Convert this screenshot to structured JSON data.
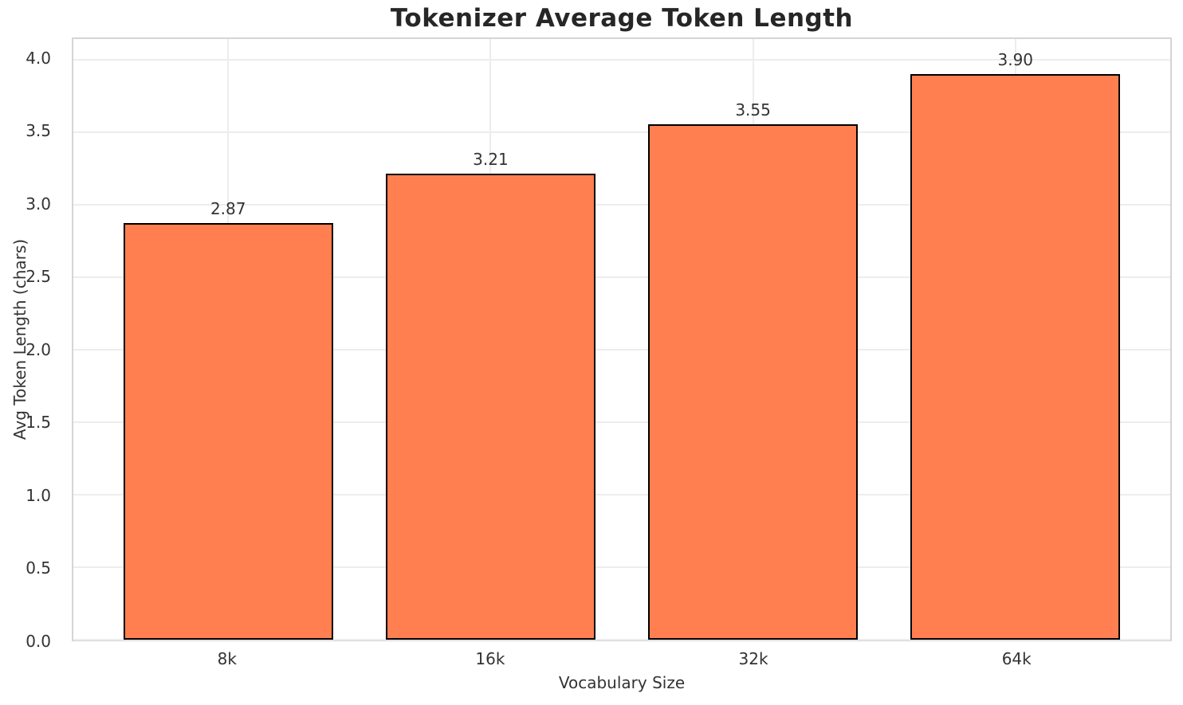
{
  "chart_data": {
    "type": "bar",
    "title": "Tokenizer Average Token Length",
    "xlabel": "Vocabulary Size",
    "ylabel": "Avg Token Length (chars)",
    "categories": [
      "8k",
      "16k",
      "32k",
      "64k"
    ],
    "values": [
      2.87,
      3.21,
      3.55,
      3.9
    ],
    "value_labels": [
      "2.87",
      "3.21",
      "3.55",
      "3.90"
    ],
    "ytick_values": [
      0.0,
      0.5,
      1.0,
      1.5,
      2.0,
      2.5,
      3.0,
      3.5,
      4.0
    ],
    "ytick_labels": [
      "0.0",
      "0.5",
      "1.0",
      "1.5",
      "2.0",
      "2.5",
      "3.0",
      "3.5",
      "4.0"
    ],
    "ylim": [
      0,
      4.14
    ],
    "grid": true,
    "legend": null,
    "colors": {
      "bar_fill": "#ff7f50",
      "bar_edge": "#000000",
      "grid_line": "#ededed",
      "spine": "#d5d5d5",
      "tick_text": "#333333",
      "title_text": "#262626"
    }
  }
}
